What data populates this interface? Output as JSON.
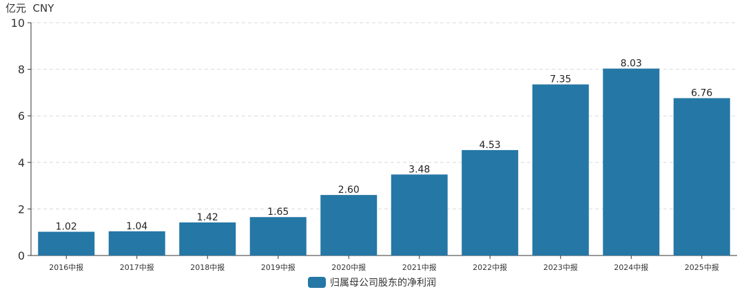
{
  "chart_data": {
    "type": "bar",
    "unit_label": "亿元  CNY",
    "categories": [
      "2016中报",
      "2017中报",
      "2018中报",
      "2019中报",
      "2020中报",
      "2021中报",
      "2022中报",
      "2023中报",
      "2024中报",
      "2025中报"
    ],
    "series": [
      {
        "name": "归属母公司股东的净利润",
        "values": [
          1.02,
          1.04,
          1.42,
          1.65,
          2.6,
          3.48,
          4.53,
          7.35,
          8.03,
          6.76
        ],
        "data_labels": [
          "1.02",
          "1.04",
          "1.42",
          "1.65",
          "2.60",
          "3.48",
          "4.53",
          "7.35",
          "8.03",
          "6.76"
        ],
        "color": "#2577a6"
      }
    ],
    "ylim": [
      0,
      10
    ],
    "yticks": [
      "0",
      "2",
      "4",
      "6",
      "8",
      "10"
    ],
    "ytick_values": [
      0,
      2,
      4,
      6,
      8,
      10
    ],
    "grid": true,
    "legend_position": "bottom-center"
  }
}
